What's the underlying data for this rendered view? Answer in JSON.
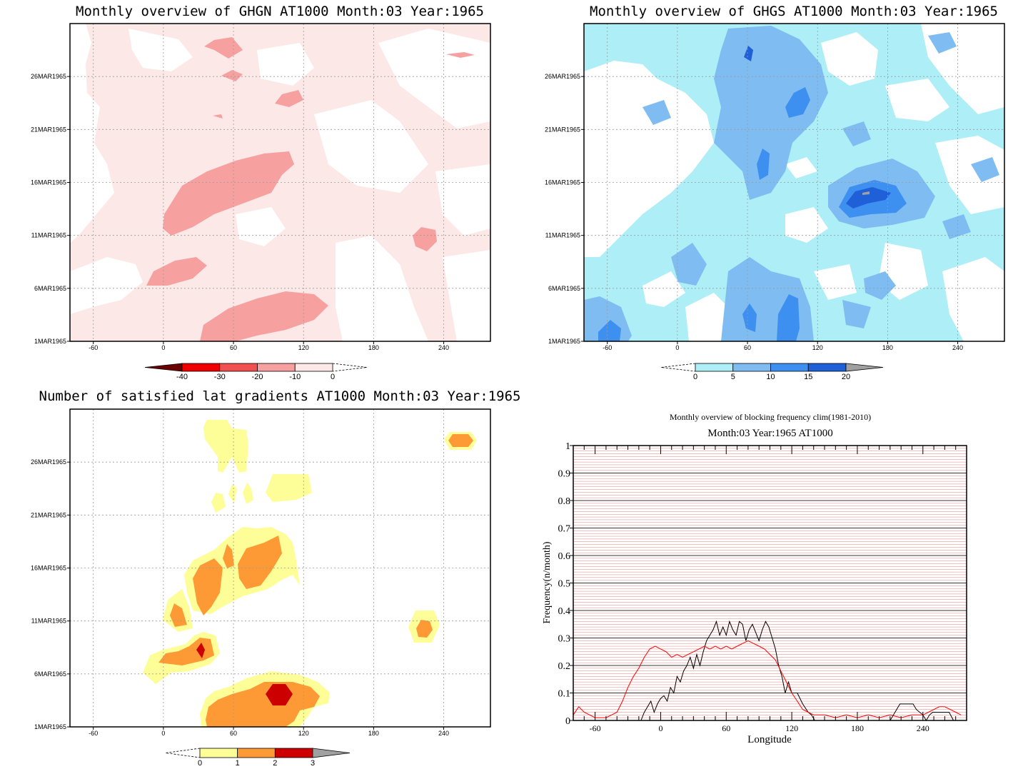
{
  "chart_data": [
    {
      "type": "heatmap",
      "title": "Monthly overview of GHGN AT1000 Month:03 Year:1965",
      "x_ticks": [
        "-60",
        "0",
        "60",
        "120",
        "180",
        "240"
      ],
      "y_ticks": [
        "1MAR1965",
        "6MAR1965",
        "11MAR1965",
        "16MAR1965",
        "21MAR1965",
        "26MAR1965"
      ],
      "xlim": [
        -80,
        280
      ],
      "ylim_days": [
        1,
        31
      ],
      "colorbar_labels": [
        "-40",
        "-30",
        "-20",
        "-10",
        "0"
      ],
      "colorbar_colors": [
        "#6b0000",
        "#ee0000",
        "#f05050",
        "#f7a0a0",
        "#fde8e8"
      ],
      "grid": true
    },
    {
      "type": "heatmap",
      "title": "Monthly overview of GHGS AT1000 Month:03 Year:1965",
      "x_ticks": [
        "-60",
        "0",
        "60",
        "120",
        "180",
        "240"
      ],
      "y_ticks": [
        "1MAR1965",
        "6MAR1965",
        "11MAR1965",
        "16MAR1965",
        "21MAR1965",
        "26MAR1965"
      ],
      "xlim": [
        -80,
        280
      ],
      "ylim_days": [
        1,
        31
      ],
      "colorbar_labels": [
        "0",
        "5",
        "10",
        "15",
        "20"
      ],
      "colorbar_colors": [
        "#aeeff7",
        "#7fbcf2",
        "#3d8ff0",
        "#1f60d8",
        "#a0a0a0"
      ],
      "grid": true
    },
    {
      "type": "heatmap",
      "title": "Number of satisfied lat gradients AT1000 Month:03 Year:1965",
      "x_ticks": [
        "-60",
        "0",
        "60",
        "120",
        "180",
        "240"
      ],
      "y_ticks": [
        "1MAR1965",
        "6MAR1965",
        "11MAR1965",
        "16MAR1965",
        "21MAR1965",
        "26MAR1965"
      ],
      "xlim": [
        -80,
        280
      ],
      "ylim_days": [
        1,
        31
      ],
      "colorbar_labels": [
        "0",
        "1",
        "2",
        "3"
      ],
      "colorbar_colors": [
        "#fefe98",
        "#fe9a35",
        "#cc0000",
        "#a0a0a0"
      ],
      "grid": true
    },
    {
      "type": "line",
      "title": "Monthly overview of blocking frequency clim(1981-2010)",
      "subtitle": "Month:03 Year:1965  AT1000",
      "xlabel": "Longitude",
      "ylabel": "Frequency(n/month)",
      "xlim": [
        -80,
        280
      ],
      "ylim": [
        0,
        1
      ],
      "x_ticks": [
        "-60",
        "0",
        "60",
        "120",
        "180",
        "240"
      ],
      "y_ticks": [
        "0",
        "0.1",
        "0.2",
        "0.3",
        "0.4",
        "0.5",
        "0.6",
        "0.7",
        "0.8",
        "0.9",
        "1"
      ],
      "grid": true,
      "series": [
        {
          "color": "#000000",
          "x": [
            -80,
            -18,
            -15,
            -12,
            -9,
            -6,
            -3,
            0,
            3,
            6,
            9,
            12,
            15,
            18,
            21,
            24,
            27,
            30,
            33,
            36,
            39,
            42,
            45,
            48,
            51,
            54,
            57,
            60,
            63,
            66,
            69,
            72,
            75,
            78,
            81,
            84,
            87,
            90,
            93,
            96,
            99,
            102,
            105,
            108,
            111,
            114,
            117,
            120,
            125,
            130,
            135,
            138,
            141,
            144,
            200,
            210,
            213,
            216,
            219,
            222,
            225,
            228,
            231,
            234,
            240,
            243,
            246,
            249,
            252,
            258,
            264,
            268,
            272
          ],
          "y": [
            0,
            0,
            0.03,
            0.05,
            0.07,
            0.03,
            0.06,
            0.08,
            0.09,
            0.07,
            0.12,
            0.1,
            0.16,
            0.14,
            0.18,
            0.2,
            0.23,
            0.19,
            0.24,
            0.2,
            0.25,
            0.29,
            0.31,
            0.33,
            0.36,
            0.31,
            0.34,
            0.31,
            0.36,
            0.33,
            0.31,
            0.36,
            0.35,
            0.29,
            0.33,
            0.35,
            0.32,
            0.29,
            0.33,
            0.36,
            0.34,
            0.3,
            0.26,
            0.2,
            0.16,
            0.1,
            0.14,
            0.1,
            0.1,
            0.06,
            0.03,
            0.02,
            0,
            0,
            0,
            0,
            0.02,
            0.04,
            0.06,
            0.06,
            0.06,
            0.06,
            0.06,
            0.04,
            0.02,
            0,
            0.02,
            0.03,
            0.03,
            0.03,
            0.03,
            0,
            0
          ]
        },
        {
          "color": "#ff0000",
          "x": [
            -80,
            -75,
            -70,
            -65,
            -60,
            -55,
            -50,
            -45,
            -40,
            -35,
            -30,
            -25,
            -20,
            -15,
            -10,
            -5,
            0,
            5,
            10,
            15,
            20,
            25,
            30,
            35,
            40,
            45,
            50,
            55,
            60,
            65,
            70,
            75,
            80,
            85,
            90,
            95,
            100,
            105,
            110,
            115,
            120,
            125,
            130,
            135,
            140,
            150,
            160,
            170,
            180,
            190,
            200,
            210,
            220,
            230,
            240,
            245,
            250,
            255,
            260,
            265,
            270,
            275
          ],
          "y": [
            0.02,
            0.05,
            0.03,
            0.02,
            0.01,
            0.01,
            0.01,
            0.02,
            0.03,
            0.07,
            0.12,
            0.16,
            0.19,
            0.23,
            0.26,
            0.27,
            0.26,
            0.25,
            0.23,
            0.24,
            0.23,
            0.24,
            0.25,
            0.26,
            0.27,
            0.26,
            0.27,
            0.26,
            0.27,
            0.26,
            0.27,
            0.28,
            0.29,
            0.28,
            0.27,
            0.26,
            0.24,
            0.22,
            0.18,
            0.14,
            0.1,
            0.07,
            0.04,
            0.03,
            0.02,
            0.02,
            0.01,
            0.02,
            0.01,
            0.02,
            0.01,
            0.02,
            0.01,
            0.02,
            0.02,
            0.03,
            0.04,
            0.05,
            0.05,
            0.04,
            0.03,
            0.02
          ]
        }
      ]
    }
  ]
}
